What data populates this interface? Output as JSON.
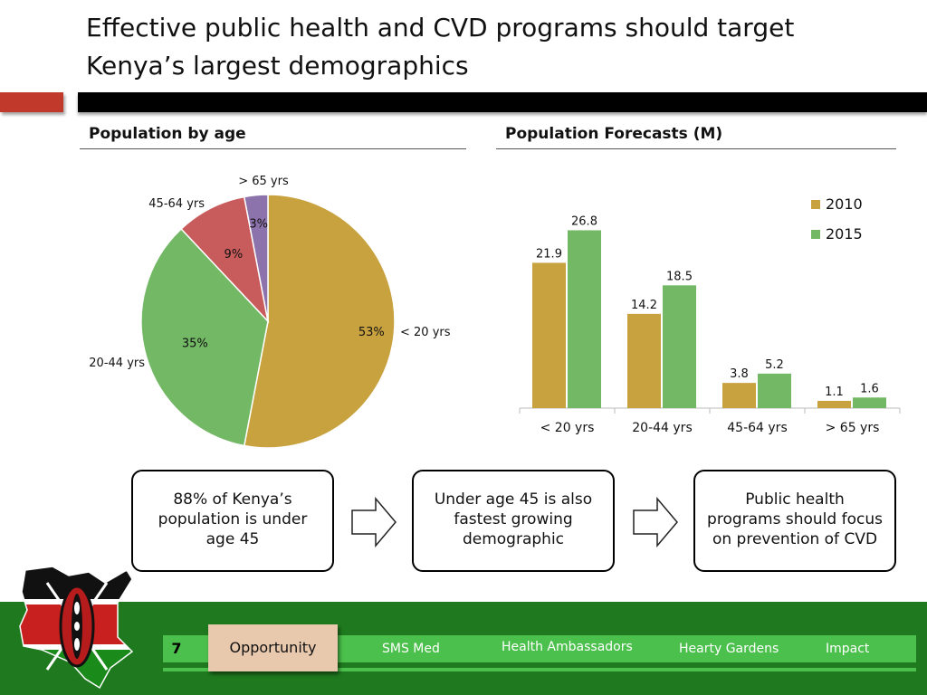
{
  "title": "Effective public health and CVD programs should target Kenya’s largest demographics",
  "sections": {
    "left_heading": "Population by age",
    "right_heading": "Population Forecasts (M)"
  },
  "chart_data": [
    {
      "type": "pie",
      "title": "Population by age",
      "slices": [
        {
          "label": "< 20 yrs",
          "value": 53,
          "value_label": "53%",
          "color": "#c9a240"
        },
        {
          "label": "20-44 yrs",
          "value": 35,
          "value_label": "35%",
          "color": "#72b865"
        },
        {
          "label": "45-64 yrs",
          "value": 9,
          "value_label": "9%",
          "color": "#c85c5c"
        },
        {
          "label": "> 65 yrs",
          "value": 3,
          "value_label": "3%",
          "color": "#8c73ab"
        }
      ]
    },
    {
      "type": "bar",
      "title": "Population Forecasts (M)",
      "categories": [
        "< 20 yrs",
        "20-44 yrs",
        "45-64 yrs",
        "> 65 yrs"
      ],
      "series": [
        {
          "name": "2010",
          "color": "#c9a240",
          "values": [
            21.9,
            14.2,
            3.8,
            1.1
          ]
        },
        {
          "name": "2015",
          "color": "#72b865",
          "values": [
            26.8,
            18.5,
            5.2,
            1.6
          ]
        }
      ],
      "ylim": [
        0,
        30
      ],
      "legend": "top-right",
      "grid": false
    }
  ],
  "callouts": [
    {
      "text": "88% of Kenya’s population is under age 45"
    },
    {
      "text": "Under age 45 is also fastest growing demographic"
    },
    {
      "text": "Public health programs should focus on prevention of CVD"
    }
  ],
  "footer": {
    "page_number": "7",
    "active_tab": "Opportunity",
    "nav": [
      "SMS Med",
      "Health Ambassadors",
      "Hearty Gardens",
      "Impact"
    ]
  }
}
